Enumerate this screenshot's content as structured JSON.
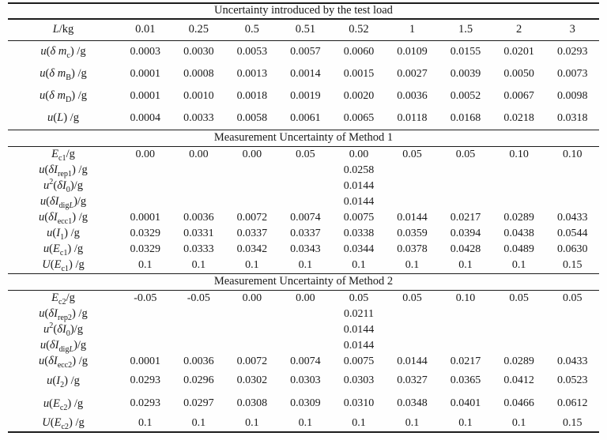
{
  "page": {
    "background": "#fefefe",
    "text_color": "#1a1a1a",
    "rule_color": "#1c1c1c"
  },
  "table": {
    "title": "Uncertainty introduced by the test load",
    "header": {
      "label": "*L*/kg",
      "values": [
        "0.01",
        "0.25",
        "0.5",
        "0.51",
        "0.52",
        "1",
        "1.5",
        "2",
        "3"
      ]
    },
    "load_section": {
      "rows": [
        {
          "label": "*u*(*δ m*~c~) /g",
          "values": [
            "0.0003",
            "0.0030",
            "0.0053",
            "0.0057",
            "0.0060",
            "0.0109",
            "0.0155",
            "0.0201",
            "0.0293"
          ]
        },
        {
          "label": "*u*(*δ m*~B~) /g",
          "values": [
            "0.0001",
            "0.0008",
            "0.0013",
            "0.0014",
            "0.0015",
            "0.0027",
            "0.0039",
            "0.0050",
            "0.0073"
          ]
        },
        {
          "label": "*u*(*δ m*~D~) /g",
          "values": [
            "0.0001",
            "0.0010",
            "0.0018",
            "0.0019",
            "0.0020",
            "0.0036",
            "0.0052",
            "0.0067",
            "0.0098"
          ]
        },
        {
          "label": "*u*(*L*) /g",
          "values": [
            "0.0004",
            "0.0033",
            "0.0058",
            "0.0061",
            "0.0065",
            "0.0118",
            "0.0168",
            "0.0218",
            "0.0318"
          ]
        }
      ]
    },
    "method_sections": [
      {
        "title": "Measurement Uncertainty of Method 1",
        "rows": [
          {
            "label": "*E*~c1~/g",
            "values": [
              "0.00",
              "0.00",
              "0.00",
              "0.05",
              "0.00",
              "0.05",
              "0.05",
              "0.10",
              "0.10"
            ]
          },
          {
            "label": "*u*(*δI*~rep1~) /g",
            "values": [
              "",
              "",
              "",
              "",
              "0.0258",
              "",
              "",
              "",
              ""
            ]
          },
          {
            "label": "*u*^2^(*δI*~0~)/g",
            "values": [
              "",
              "",
              "",
              "",
              "0.0144",
              "",
              "",
              "",
              ""
            ]
          },
          {
            "label": "*u*(*δI*~dig*L*~)/g",
            "values": [
              "",
              "",
              "",
              "",
              "0.0144",
              "",
              "",
              "",
              ""
            ]
          },
          {
            "label": "*u*(*δI*~ecc1~) /g",
            "values": [
              "0.0001",
              "0.0036",
              "0.0072",
              "0.0074",
              "0.0075",
              "0.0144",
              "0.0217",
              "0.0289",
              "0.0433"
            ]
          },
          {
            "label": "*u*(*I*~1~) /g",
            "values": [
              "0.0329",
              "0.0331",
              "0.0337",
              "0.0337",
              "0.0338",
              "0.0359",
              "0.0394",
              "0.0438",
              "0.0544"
            ]
          },
          {
            "label": "*u*(*E*~c1~) /g",
            "values": [
              "0.0329",
              "0.0333",
              "0.0342",
              "0.0343",
              "0.0344",
              "0.0378",
              "0.0428",
              "0.0489",
              "0.0630"
            ]
          },
          {
            "label": "*U*(*E*~c1~) /g",
            "values": [
              "0.1",
              "0.1",
              "0.1",
              "0.1",
              "0.1",
              "0.1",
              "0.1",
              "0.1",
              "0.15"
            ]
          }
        ]
      },
      {
        "title": "Measurement Uncertainty of Method 2",
        "rows": [
          {
            "label": "*E*~c2~/g",
            "values": [
              "-0.05",
              "-0.05",
              "0.00",
              "0.00",
              "0.05",
              "0.05",
              "0.10",
              "0.05",
              "0.05"
            ]
          },
          {
            "label": "*u*(*δI*~rep2~) /g",
            "values": [
              "",
              "",
              "",
              "",
              "0.0211",
              "",
              "",
              "",
              ""
            ]
          },
          {
            "label": "*u*^2^(*δI*~0~)/g",
            "values": [
              "",
              "",
              "",
              "",
              "0.0144",
              "",
              "",
              "",
              ""
            ]
          },
          {
            "label": "*u*(*δI*~dig*L*~)/g",
            "values": [
              "",
              "",
              "",
              "",
              "0.0144",
              "",
              "",
              "",
              ""
            ]
          },
          {
            "label": "*u*(*δI*~ecc2~) /g",
            "values": [
              "0.0001",
              "0.0036",
              "0.0072",
              "0.0074",
              "0.0075",
              "0.0144",
              "0.0217",
              "0.0289",
              "0.0433"
            ]
          },
          {
            "label": "*u*(*I*~2~) /g",
            "values": [
              "0.0293",
              "0.0296",
              "0.0302",
              "0.0303",
              "0.0303",
              "0.0327",
              "0.0365",
              "0.0412",
              "0.0523"
            ]
          },
          {
            "label": "*u*(*E*~c2~) /g",
            "values": [
              "0.0293",
              "0.0297",
              "0.0308",
              "0.0309",
              "0.0310",
              "0.0348",
              "0.0401",
              "0.0466",
              "0.0612"
            ]
          },
          {
            "label": "*U*(*E*~c2~) /g",
            "values": [
              "0.1",
              "0.1",
              "0.1",
              "0.1",
              "0.1",
              "0.1",
              "0.1",
              "0.1",
              "0.15"
            ]
          }
        ]
      }
    ]
  }
}
